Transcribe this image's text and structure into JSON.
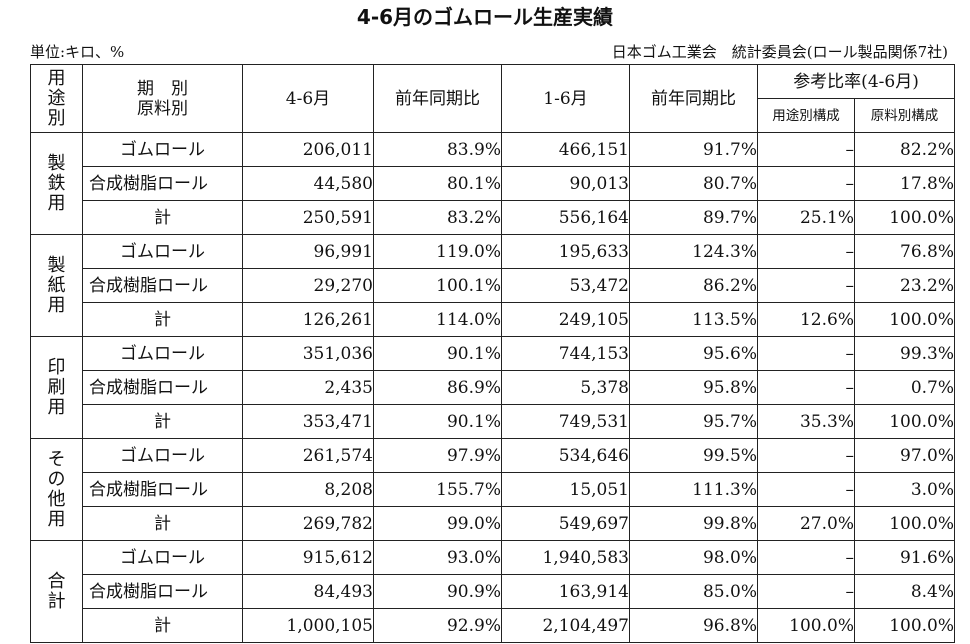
{
  "title": "4-6月のゴムロール生産実績",
  "unit": "単位:キロ、%",
  "source": "日本ゴム工業会　統計委員会(ロール製品関係7社)",
  "headers": {
    "category_chars": [
      "用",
      "途",
      "別"
    ],
    "period_line1": "期　別",
    "period_line2": "原料別",
    "col_q": "4-6月",
    "col_q_yoy": "前年同期比",
    "col_ytd": "1-6月",
    "col_ytd_yoy": "前年同期比",
    "ref_group": "参考比率(4-6月)",
    "ref_use": "用途別構成",
    "ref_material": "原料別構成"
  },
  "groups": [
    {
      "chars": [
        "製",
        "鉄",
        "用"
      ],
      "rows": [
        {
          "label": "ゴムロール",
          "q": "206,011",
          "q_yoy": "83.9%",
          "ytd": "466,151",
          "ytd_yoy": "91.7%",
          "use": "–",
          "material": "82.2%"
        },
        {
          "label": "合成樹脂ロール",
          "q": "44,580",
          "q_yoy": "80.1%",
          "ytd": "90,013",
          "ytd_yoy": "80.7%",
          "use": "–",
          "material": "17.8%"
        },
        {
          "label": "計",
          "q": "250,591",
          "q_yoy": "83.2%",
          "ytd": "556,164",
          "ytd_yoy": "89.7%",
          "use": "25.1%",
          "material": "100.0%"
        }
      ]
    },
    {
      "chars": [
        "製",
        "紙",
        "用"
      ],
      "rows": [
        {
          "label": "ゴムロール",
          "q": "96,991",
          "q_yoy": "119.0%",
          "ytd": "195,633",
          "ytd_yoy": "124.3%",
          "use": "–",
          "material": "76.8%"
        },
        {
          "label": "合成樹脂ロール",
          "q": "29,270",
          "q_yoy": "100.1%",
          "ytd": "53,472",
          "ytd_yoy": "86.2%",
          "use": "–",
          "material": "23.2%"
        },
        {
          "label": "計",
          "q": "126,261",
          "q_yoy": "114.0%",
          "ytd": "249,105",
          "ytd_yoy": "113.5%",
          "use": "12.6%",
          "material": "100.0%"
        }
      ]
    },
    {
      "chars": [
        "印",
        "刷",
        "用"
      ],
      "rows": [
        {
          "label": "ゴムロール",
          "q": "351,036",
          "q_yoy": "90.1%",
          "ytd": "744,153",
          "ytd_yoy": "95.6%",
          "use": "–",
          "material": "99.3%"
        },
        {
          "label": "合成樹脂ロール",
          "q": "2,435",
          "q_yoy": "86.9%",
          "ytd": "5,378",
          "ytd_yoy": "95.8%",
          "use": "–",
          "material": "0.7%"
        },
        {
          "label": "計",
          "q": "353,471",
          "q_yoy": "90.1%",
          "ytd": "749,531",
          "ytd_yoy": "95.7%",
          "use": "35.3%",
          "material": "100.0%"
        }
      ]
    },
    {
      "chars": [
        "そ",
        "の",
        "他",
        "用"
      ],
      "rows": [
        {
          "label": "ゴムロール",
          "q": "261,574",
          "q_yoy": "97.9%",
          "ytd": "534,646",
          "ytd_yoy": "99.5%",
          "use": "–",
          "material": "97.0%"
        },
        {
          "label": "合成樹脂ロール",
          "q": "8,208",
          "q_yoy": "155.7%",
          "ytd": "15,051",
          "ytd_yoy": "111.3%",
          "use": "–",
          "material": "3.0%"
        },
        {
          "label": "計",
          "q": "269,782",
          "q_yoy": "99.0%",
          "ytd": "549,697",
          "ytd_yoy": "99.8%",
          "use": "27.0%",
          "material": "100.0%"
        }
      ]
    },
    {
      "chars": [
        "合",
        "計"
      ],
      "rows": [
        {
          "label": "ゴムロール",
          "q": "915,612",
          "q_yoy": "93.0%",
          "ytd": "1,940,583",
          "ytd_yoy": "98.0%",
          "use": "–",
          "material": "91.6%"
        },
        {
          "label": "合成樹脂ロール",
          "q": "84,493",
          "q_yoy": "90.9%",
          "ytd": "163,914",
          "ytd_yoy": "85.0%",
          "use": "–",
          "material": "8.4%"
        },
        {
          "label": "計",
          "q": "1,000,105",
          "q_yoy": "92.9%",
          "ytd": "2,104,497",
          "ytd_yoy": "96.8%",
          "use": "100.0%",
          "material": "100.0%"
        }
      ]
    }
  ]
}
